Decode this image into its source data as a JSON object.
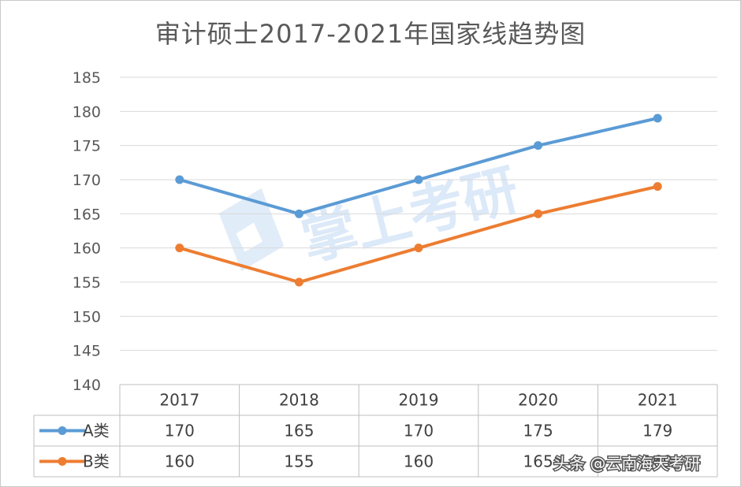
{
  "chart_data": {
    "type": "line",
    "title": "审计硕士2017-2021年国家线趋势图",
    "categories": [
      "2017",
      "2018",
      "2019",
      "2020",
      "2021"
    ],
    "series": [
      {
        "name": "A类",
        "values": [
          170,
          165,
          170,
          175,
          179
        ],
        "color": "#5b9bd5"
      },
      {
        "name": "B类",
        "values": [
          160,
          155,
          160,
          165,
          169
        ],
        "color": "#ed7d31"
      }
    ],
    "ylim": [
      140,
      185
    ],
    "yticks": [
      140,
      145,
      150,
      155,
      160,
      165,
      170,
      175,
      180,
      185
    ],
    "grid": true,
    "legend": "data-table",
    "data_table": {
      "rows": [
        {
          "name": "A类",
          "values": [
            "170",
            "165",
            "170",
            "175",
            "179"
          ]
        },
        {
          "name": "B类",
          "values": [
            "160",
            "155",
            "160",
            "165",
            "169"
          ]
        }
      ]
    }
  },
  "watermark": {
    "text": "掌上考研"
  },
  "footer": {
    "text": "头条 @云南海天考研"
  }
}
